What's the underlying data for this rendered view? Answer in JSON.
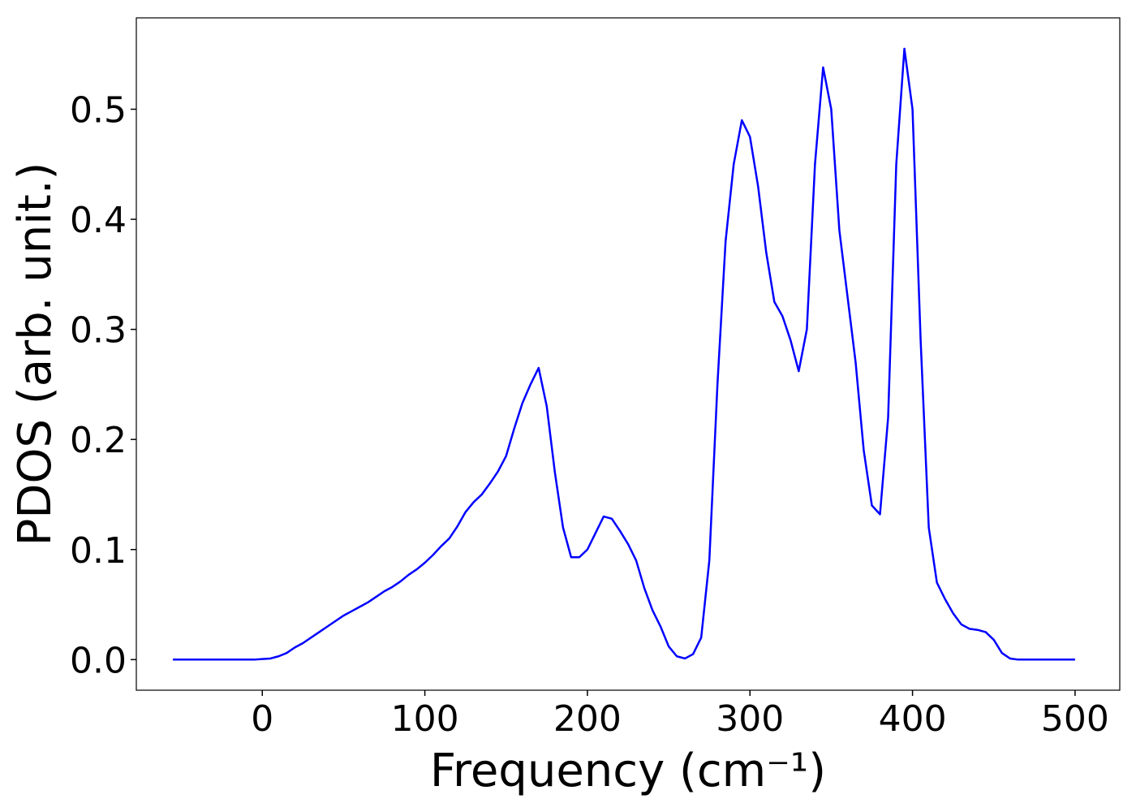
{
  "chart_data": {
    "type": "line",
    "xlabel": "Frequency (cm⁻¹)",
    "ylabel": "PDOS (arb. unit.)",
    "x": [
      -55,
      -50,
      -45,
      -40,
      -35,
      -30,
      -25,
      -20,
      -15,
      -10,
      -5,
      0,
      5,
      10,
      15,
      20,
      25,
      30,
      35,
      40,
      45,
      50,
      55,
      60,
      65,
      70,
      75,
      80,
      85,
      90,
      95,
      100,
      105,
      110,
      115,
      120,
      125,
      130,
      135,
      140,
      145,
      150,
      155,
      160,
      165,
      170,
      175,
      180,
      185,
      190,
      195,
      200,
      205,
      210,
      215,
      220,
      225,
      230,
      235,
      240,
      245,
      250,
      255,
      260,
      265,
      270,
      275,
      280,
      285,
      290,
      295,
      300,
      305,
      310,
      315,
      320,
      325,
      330,
      335,
      340,
      345,
      350,
      355,
      360,
      365,
      370,
      375,
      380,
      385,
      390,
      395,
      400,
      405,
      410,
      415,
      420,
      425,
      430,
      435,
      440,
      445,
      450,
      455,
      460,
      465,
      470,
      475,
      480,
      485,
      490,
      495,
      500
    ],
    "series": [
      {
        "color": "#0000ff",
        "values": [
          0,
          0,
          0,
          0,
          0,
          0,
          0,
          0,
          0,
          0,
          0,
          0.0005,
          0.001,
          0.003,
          0.006,
          0.011,
          0.015,
          0.02,
          0.025,
          0.03,
          0.035,
          0.04,
          0.044,
          0.048,
          0.052,
          0.057,
          0.062,
          0.066,
          0.071,
          0.077,
          0.082,
          0.088,
          0.095,
          0.103,
          0.11,
          0.121,
          0.134,
          0.143,
          0.15,
          0.16,
          0.171,
          0.185,
          0.21,
          0.233,
          0.25,
          0.265,
          0.23,
          0.17,
          0.12,
          0.093,
          0.093,
          0.1,
          0.115,
          0.13,
          0.128,
          0.117,
          0.105,
          0.09,
          0.065,
          0.045,
          0.03,
          0.012,
          0.003,
          0.001,
          0.005,
          0.02,
          0.09,
          0.25,
          0.38,
          0.45,
          0.49,
          0.475,
          0.43,
          0.37,
          0.325,
          0.312,
          0.29,
          0.262,
          0.3,
          0.45,
          0.538,
          0.5,
          0.39,
          0.33,
          0.27,
          0.19,
          0.14,
          0.132,
          0.22,
          0.45,
          0.555,
          0.5,
          0.29,
          0.12,
          0.07,
          0.055,
          0.042,
          0.032,
          0.028,
          0.027,
          0.025,
          0.018,
          0.006,
          0.001,
          0,
          0,
          0,
          0,
          0,
          0,
          0,
          0
        ]
      }
    ],
    "xlim": [
      -77.5,
      527.5
    ],
    "ylim": [
      -0.0278,
      0.583
    ],
    "xticks": [
      0,
      100,
      200,
      300,
      400,
      500
    ],
    "yticks": [
      {
        "value": 0,
        "label": "0.0"
      },
      0.1,
      0.2,
      0.3,
      0.4,
      0.5
    ],
    "grid": false
  }
}
